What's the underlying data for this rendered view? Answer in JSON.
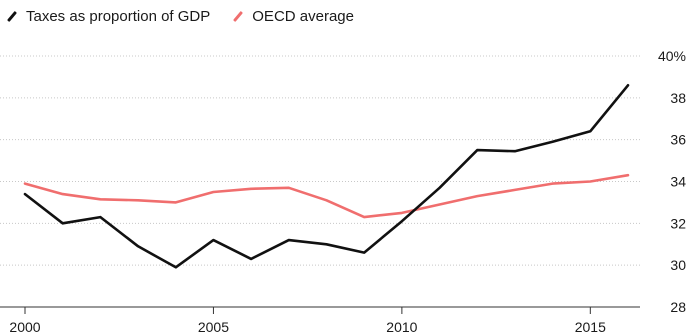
{
  "legend": {
    "series1_label": "Taxes as proportion of GDP",
    "series2_label": "OECD average"
  },
  "colors": {
    "series1": "#111111",
    "series2": "#f06e6e",
    "grid": "#c8c8c8",
    "axis": "#333333"
  },
  "chart_data": {
    "type": "line",
    "title": "",
    "xlabel": "",
    "ylabel": "",
    "x": [
      2000,
      2001,
      2002,
      2003,
      2004,
      2005,
      2006,
      2007,
      2008,
      2009,
      2010,
      2011,
      2012,
      2013,
      2014,
      2015,
      2016
    ],
    "series": [
      {
        "name": "Taxes as proportion of GDP",
        "values": [
          33.4,
          32.0,
          32.3,
          30.9,
          29.9,
          31.2,
          30.3,
          31.2,
          31.0,
          30.6,
          32.1,
          33.7,
          35.5,
          35.45,
          35.9,
          36.4,
          38.6
        ]
      },
      {
        "name": "OECD average",
        "values": [
          33.9,
          33.4,
          33.15,
          33.1,
          33.0,
          33.5,
          33.65,
          33.7,
          33.1,
          32.3,
          32.5,
          32.9,
          33.3,
          33.6,
          33.9,
          34.0,
          34.3
        ]
      }
    ],
    "ylim": [
      28,
      40
    ],
    "yticks": [
      "28",
      "30",
      "32",
      "34",
      "36",
      "38",
      "40%"
    ],
    "xticks": [
      "2000",
      "2005",
      "2010",
      "2015"
    ],
    "xtick_values": [
      2000,
      2005,
      2010,
      2015
    ],
    "grid": true,
    "y_axis_position": "right",
    "legend_position": "top-left"
  }
}
